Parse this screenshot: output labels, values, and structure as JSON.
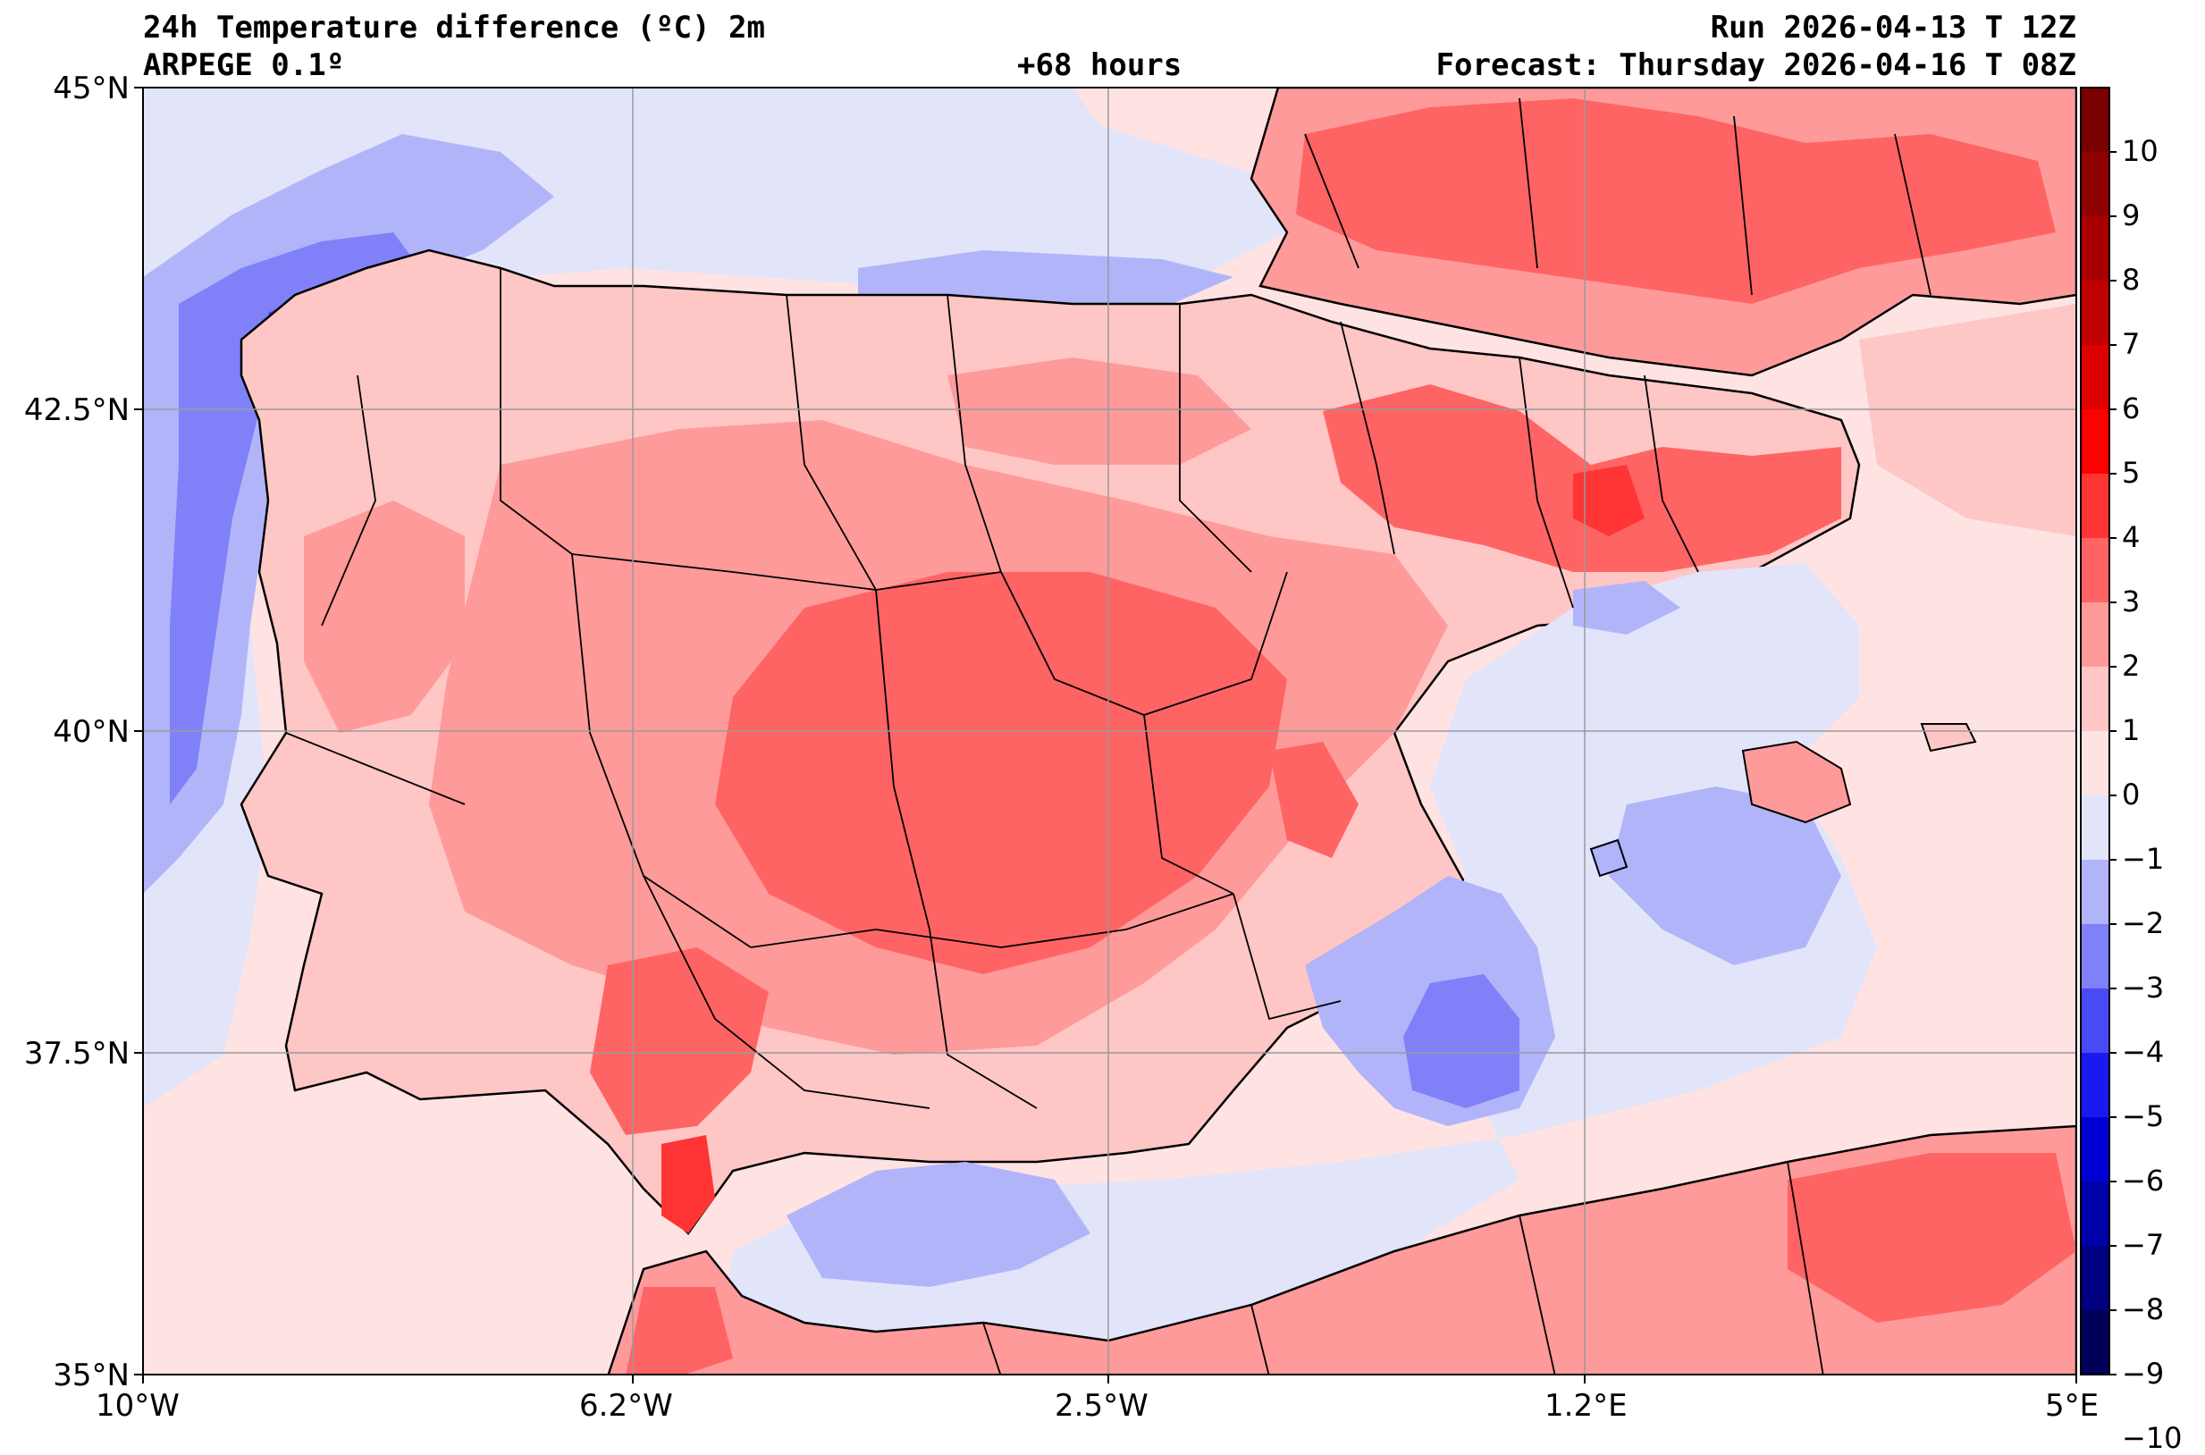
{
  "header": {
    "title": "24h Temperature difference (ºC) 2m",
    "model": "ARPEGE 0.1º",
    "lead": "+68 hours",
    "run": "Run 2026-04-13 T 12Z",
    "forecast": "Forecast: Thursday 2026-04-16 T 08Z"
  },
  "axes": {
    "lat_labels": [
      "45°N",
      "42.5°N",
      "40°N",
      "37.5°N",
      "35°N"
    ],
    "lon_labels": [
      "10°W",
      "6.2°W",
      "2.5°W",
      "1.2°E",
      "5°E"
    ],
    "lat_range": [
      35,
      45
    ],
    "lon_range": [
      -10,
      5
    ]
  },
  "colorbar": {
    "levels": [
      "10",
      "9",
      "8",
      "7",
      "6",
      "5",
      "4",
      "3",
      "2",
      "1",
      "0",
      "−1",
      "−2",
      "−3",
      "−4",
      "−5",
      "−6",
      "−7",
      "−8",
      "−9",
      "−10"
    ],
    "colors": [
      "#7a0000",
      "#8f0000",
      "#a80000",
      "#c00000",
      "#dc0000",
      "#ff0000",
      "#ff3434",
      "#ff6464",
      "#ff9a9a",
      "#ffc6c6",
      "#ffe3e3",
      "#e2e4fa",
      "#b2b4fa",
      "#8080f8",
      "#4a4af4",
      "#1a1af0",
      "#0000d4",
      "#0000a8",
      "#000080",
      "#000058"
    ]
  },
  "legend_meaning": {
    "warm": "#ff6464",
    "cold": "#8080f8",
    "neutral": "#ffe3e3"
  }
}
